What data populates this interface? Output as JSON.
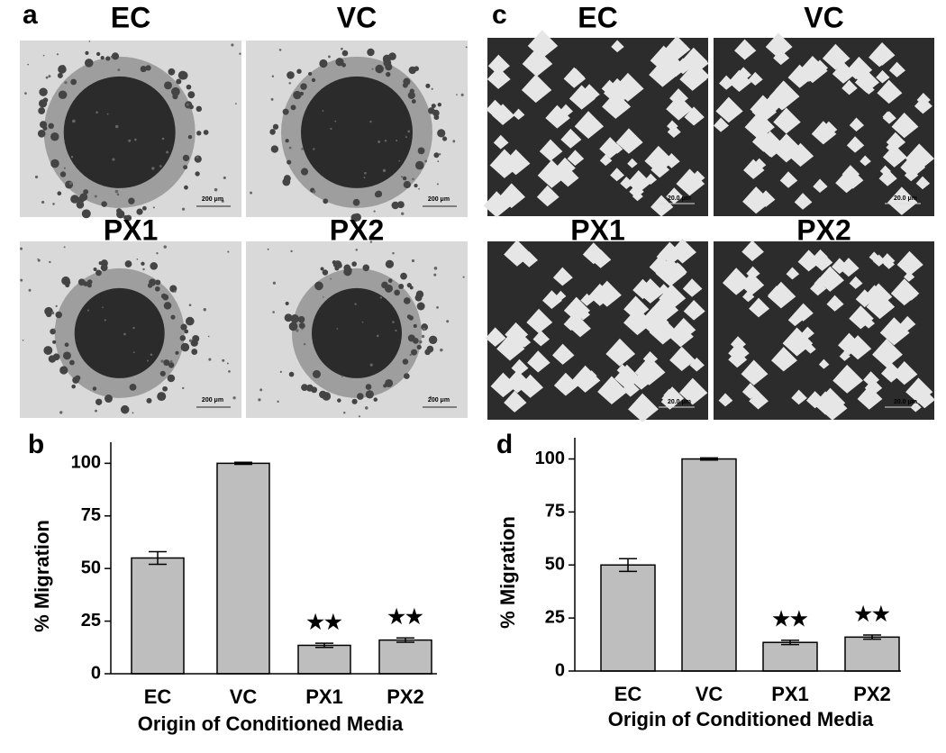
{
  "panels": [
    {
      "label": "a",
      "images": [
        {
          "title": "EC",
          "scale": "200 μm"
        },
        {
          "title": "VC",
          "scale": "200 μm"
        },
        {
          "title": "PX1",
          "scale": "200 μm"
        },
        {
          "title": "PX2",
          "scale": "200 μm"
        }
      ]
    },
    {
      "label": "c",
      "images": [
        {
          "title": "EC",
          "scale": "20.0 μm"
        },
        {
          "title": "VC",
          "scale": "20.0 μm"
        },
        {
          "title": "PX1",
          "scale": "20.0 μm"
        },
        {
          "title": "PX2",
          "scale": "20.0 μm"
        }
      ]
    }
  ],
  "chart_data": [
    {
      "type": "bar",
      "panel_label": "b",
      "categories": [
        "EC",
        "VC",
        "PX1",
        "PX2"
      ],
      "values": [
        55,
        100,
        13.5,
        16
      ],
      "errors": [
        3,
        0.5,
        1,
        1
      ],
      "annotations": [
        null,
        null,
        "★★",
        "★★"
      ],
      "color": "#bebebe",
      "ylim": [
        0,
        110
      ],
      "yticks": [
        0,
        25,
        50,
        75,
        100
      ],
      "xlabel": "Origin of Conditioned Media",
      "ylabel": "% Migration"
    },
    {
      "type": "bar",
      "panel_label": "d",
      "categories": [
        "EC",
        "VC",
        "PX1",
        "PX2"
      ],
      "values": [
        50,
        100,
        13.5,
        16
      ],
      "errors": [
        3,
        0.5,
        1,
        1
      ],
      "annotations": [
        null,
        null,
        "★★",
        "★★"
      ],
      "color": "#bebebe",
      "ylim": [
        0,
        110
      ],
      "yticks": [
        0,
        25,
        50,
        75,
        100
      ],
      "xlabel": "Origin of Conditioned Media",
      "ylabel": "% Migration"
    }
  ]
}
